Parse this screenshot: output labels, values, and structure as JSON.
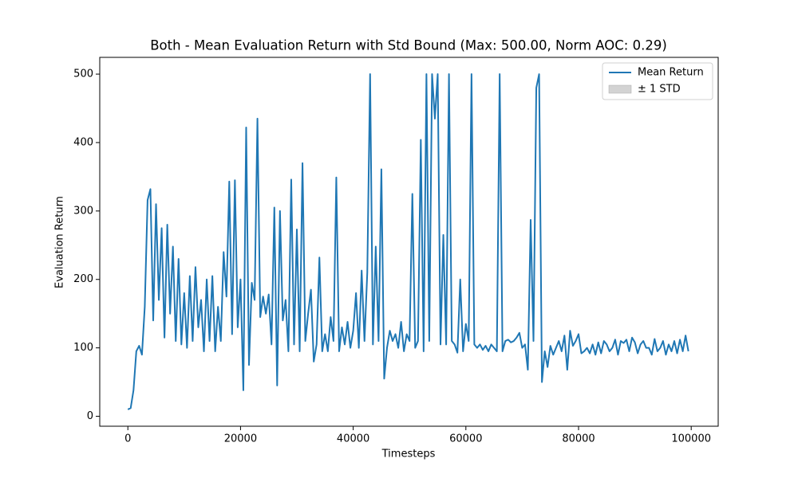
{
  "chart_data": {
    "type": "line",
    "title": "Both - Mean Evaluation Return with Std Bound (Max: 500.00, Norm AOC: 0.29)",
    "xlabel": "Timesteps",
    "ylabel": "Evaluation Return",
    "x": [
      0,
      500,
      1000,
      1500,
      2000,
      2500,
      3000,
      3500,
      4000,
      4500,
      5000,
      5500,
      6000,
      6500,
      7000,
      7500,
      8000,
      8500,
      9000,
      9500,
      10000,
      10500,
      11000,
      11500,
      12000,
      12500,
      13000,
      13500,
      14000,
      14500,
      15000,
      15500,
      16000,
      16500,
      17000,
      17500,
      18000,
      18500,
      19000,
      19500,
      20000,
      20500,
      21000,
      21500,
      22000,
      22500,
      23000,
      23500,
      24000,
      24500,
      25000,
      25500,
      26000,
      26500,
      27000,
      27500,
      28000,
      28500,
      29000,
      29500,
      30000,
      30500,
      31000,
      31500,
      32000,
      32500,
      33000,
      33500,
      34000,
      34500,
      35000,
      35500,
      36000,
      36500,
      37000,
      37500,
      38000,
      38500,
      39000,
      39500,
      40000,
      40500,
      41000,
      41500,
      42000,
      42500,
      43000,
      43500,
      44000,
      44500,
      45000,
      45500,
      46000,
      46500,
      47000,
      47500,
      48000,
      48500,
      49000,
      49500,
      50000,
      50500,
      51000,
      51500,
      52000,
      52500,
      53000,
      53500,
      54000,
      54500,
      55000,
      55500,
      56000,
      56500,
      57000,
      57500,
      58000,
      58500,
      59000,
      59500,
      60000,
      60500,
      61000,
      61500,
      62000,
      62500,
      63000,
      63500,
      64000,
      64500,
      65000,
      65500,
      66000,
      66500,
      67000,
      67500,
      68000,
      68500,
      69000,
      69500,
      70000,
      70500,
      71000,
      71500,
      72000,
      72500,
      73000,
      73500,
      74000,
      74500,
      75000,
      75500,
      76000,
      76500,
      77000,
      77500,
      78000,
      78500,
      79000,
      79500,
      80000,
      80500,
      81000,
      81500,
      82000,
      82500,
      83000,
      83500,
      84000,
      84500,
      85000,
      85500,
      86000,
      86500,
      87000,
      87500,
      88000,
      88500,
      89000,
      89500,
      90000,
      90500,
      91000,
      91500,
      92000,
      92500,
      93000,
      93500,
      94000,
      94500,
      95000,
      95500,
      96000,
      96500,
      97000,
      97500,
      98000,
      98500,
      99000,
      99500
    ],
    "series": [
      {
        "name": "Mean Return",
        "color": "#1f77b4",
        "values": [
          10,
          12,
          38,
          95,
          103,
          90,
          160,
          316,
          332,
          140,
          310,
          170,
          275,
          115,
          280,
          150,
          248,
          110,
          230,
          105,
          180,
          100,
          205,
          110,
          218,
          130,
          170,
          95,
          200,
          110,
          205,
          95,
          160,
          110,
          240,
          175,
          343,
          120,
          345,
          130,
          200,
          38,
          422,
          75,
          195,
          170,
          435,
          145,
          175,
          150,
          178,
          105,
          305,
          45,
          300,
          140,
          170,
          95,
          346,
          105,
          273,
          95,
          370,
          110,
          150,
          185,
          80,
          105,
          232,
          95,
          120,
          95,
          145,
          110,
          349,
          95,
          130,
          105,
          138,
          100,
          125,
          180,
          100,
          213,
          110,
          210,
          500,
          105,
          248,
          110,
          361,
          55,
          100,
          125,
          110,
          120,
          100,
          138,
          95,
          120,
          110,
          325,
          100,
          110,
          404,
          95,
          500,
          110,
          500,
          435,
          500,
          105,
          265,
          105,
          500,
          110,
          105,
          93,
          200,
          95,
          135,
          110,
          500,
          105,
          100,
          105,
          97,
          103,
          95,
          105,
          100,
          95,
          500,
          95,
          110,
          112,
          108,
          110,
          115,
          122,
          100,
          105,
          68,
          287,
          110,
          480,
          500,
          50,
          95,
          72,
          103,
          90,
          100,
          110,
          95,
          118,
          68,
          125,
          103,
          110,
          120,
          92,
          95,
          100,
          92,
          105,
          90,
          108,
          92,
          110,
          105,
          95,
          100,
          112,
          90,
          110,
          107,
          112,
          95,
          115,
          108,
          92,
          105,
          110,
          100,
          100,
          90,
          113,
          95,
          100,
          110,
          90,
          105,
          95,
          110,
          92,
          112,
          95,
          118,
          95
        ]
      }
    ],
    "band_name": "± 1 STD",
    "band_color": "#d3d3d3",
    "xlim": [
      -4990,
      104790
    ],
    "xticks": [
      0,
      20000,
      40000,
      60000,
      80000,
      100000
    ],
    "ylim": [
      -14.5,
      524.5
    ],
    "yticks": [
      0,
      100,
      200,
      300,
      400,
      500
    ],
    "legend": "upper right"
  }
}
